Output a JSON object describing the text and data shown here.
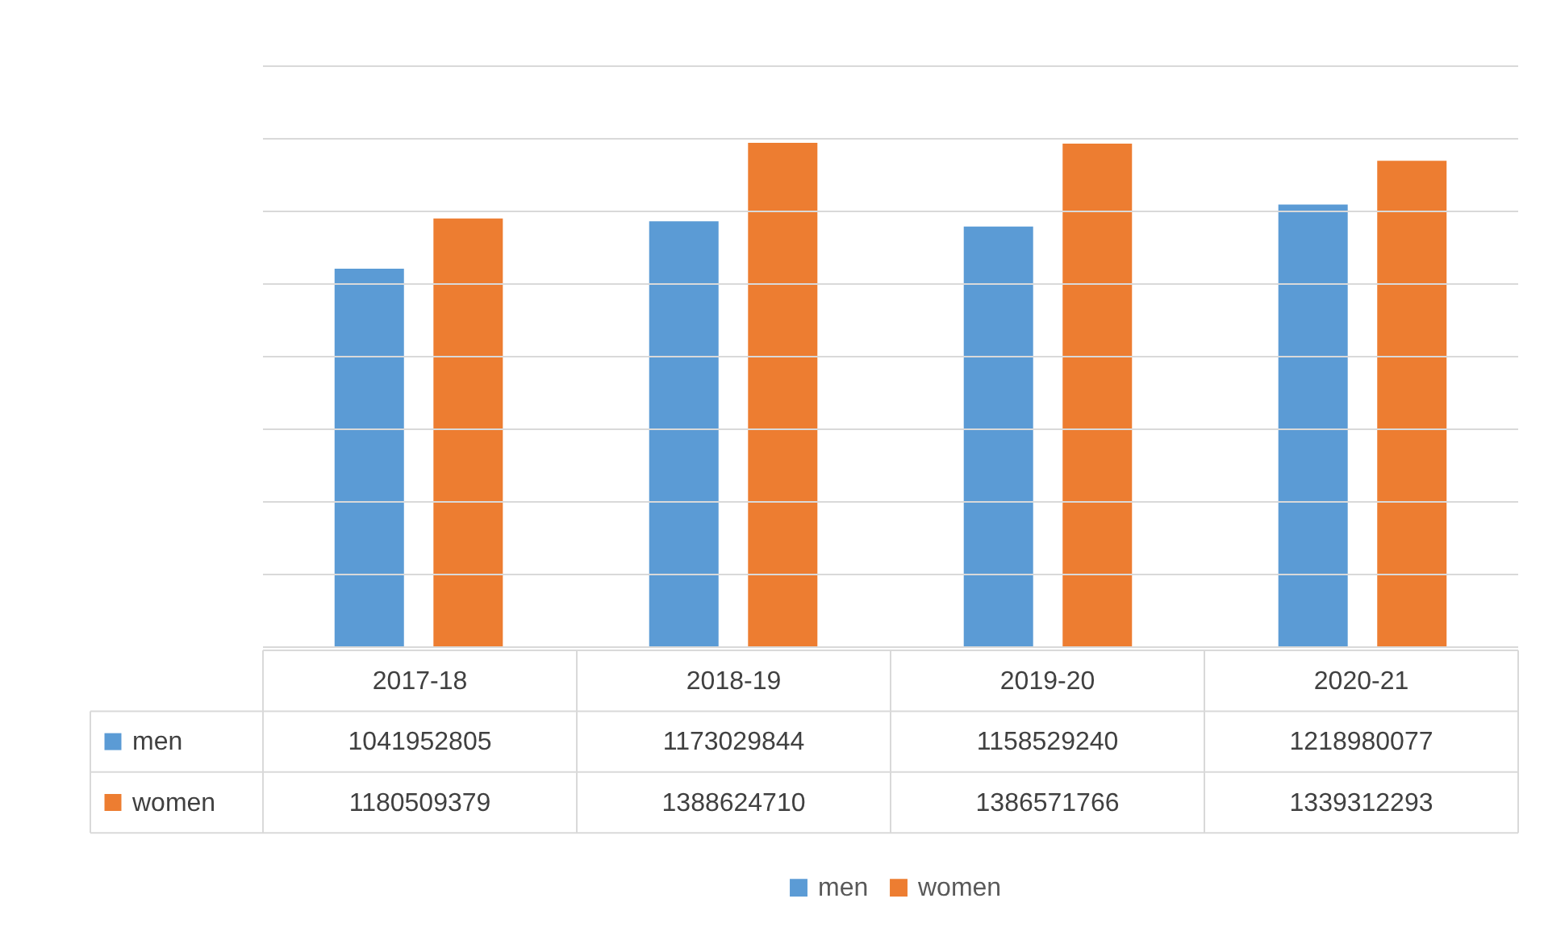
{
  "chart_data": {
    "type": "bar",
    "categories": [
      "2017-18",
      "2018-19",
      "2019-20",
      "2020-21"
    ],
    "series": [
      {
        "name": "men",
        "color": "#5b9bd5",
        "values": [
          1041952805,
          1173029844,
          1158529240,
          1218980077
        ]
      },
      {
        "name": "women",
        "color": "#ed7d31",
        "values": [
          1180509379,
          1388624710,
          1386571766,
          1339312293
        ]
      }
    ],
    "ylim": [
      0,
      1600000000
    ],
    "yticks": [
      {
        "value": 0,
        "label": null
      },
      {
        "value": 200000000,
        "label": null
      },
      {
        "value": 400000000,
        "label": null
      },
      {
        "value": 600000000,
        "label": null
      },
      {
        "value": 800000000,
        "label": null
      },
      {
        "value": 1000000000,
        "label": null
      },
      {
        "value": 1200000000,
        "label": null
      },
      {
        "value": 1400000000,
        "label": null
      },
      {
        "value": 1600000000,
        "label": null
      }
    ],
    "grid": true,
    "legend": "bottom",
    "data_labels": true,
    "tick_labels": "x"
  }
}
